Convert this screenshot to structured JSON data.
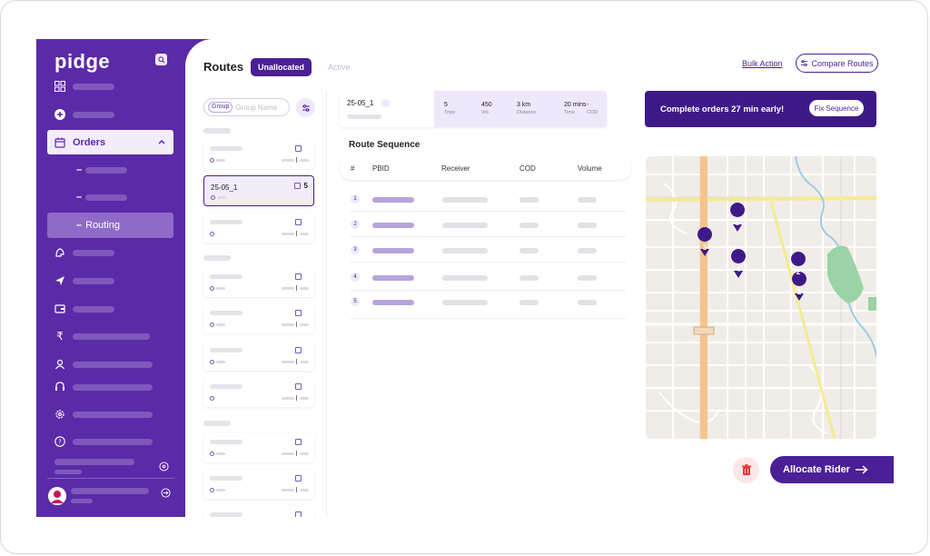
{
  "app": {
    "brand": "pidge"
  },
  "sidebar": {
    "orders_label": "Orders",
    "routing_label": "Routing",
    "icons": [
      "dashboard-icon",
      "add-icon",
      "orders-icon",
      "clients-icon",
      "navigation-icon",
      "wallet-icon",
      "rupee-icon",
      "rider-icon",
      "support-icon",
      "settings-icon",
      "help-icon"
    ]
  },
  "header": {
    "title": "Routes",
    "tabs": [
      {
        "label": "Unallocated",
        "active": true
      },
      {
        "label": "Active",
        "active": false
      }
    ],
    "bulk_action": "Bulk Action",
    "compare_routes": "Compare Routes"
  },
  "route_list": {
    "group_chip": "Group",
    "group_placeholder": "Group Name",
    "selected_route": {
      "name": "25-05_1",
      "count": "5"
    }
  },
  "route_detail": {
    "name": "25-05_1",
    "stats": [
      {
        "value": "5",
        "label": "Trips"
      },
      {
        "value": "450",
        "label": "Vol."
      },
      {
        "value": "3 km",
        "label": "Distance"
      },
      {
        "value": "20 mins",
        "label": "Time"
      },
      {
        "value": "-",
        "label": "COD"
      }
    ]
  },
  "promo": {
    "text": "Complete orders 27 min early!",
    "button": "Fix Sequence"
  },
  "sequence": {
    "title": "Route Sequence",
    "columns": [
      "#",
      "PBID",
      "Receiver",
      "COD",
      "Volume"
    ],
    "rows": [
      "1",
      "2",
      "3",
      "4",
      "5"
    ]
  },
  "map": {
    "markers": [
      "1",
      "2",
      "3",
      "4",
      "5"
    ]
  },
  "actions": {
    "allocate": "Allocate Rider"
  },
  "colors": {
    "primary": "#5b2aa8",
    "primary_dark": "#4b1f96",
    "accent_light": "#efe8fb",
    "danger": "#e53935"
  }
}
